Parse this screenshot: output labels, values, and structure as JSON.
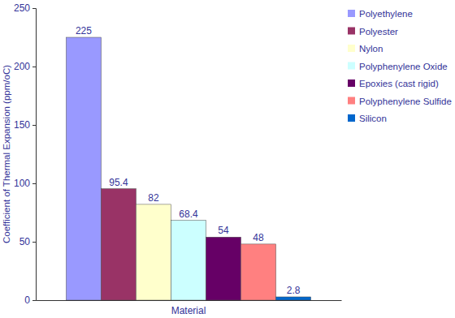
{
  "chart_data": {
    "type": "bar",
    "x_label": "Material",
    "y_label": "Coefficient of Thermal Expansion (ppm/oC)",
    "categories": [
      "Polyethylene",
      "Polyester",
      "Nylon",
      "Polyphenylene Oxide",
      "Epoxies (cast rigid)",
      "Polyphenylene Sulfide",
      "Silicon"
    ],
    "values": [
      225,
      95.4,
      82,
      68.4,
      54,
      48,
      2.8
    ],
    "colors": [
      "#9999ff",
      "#993366",
      "#ffffcc",
      "#ccffff",
      "#660066",
      "#ff8080",
      "#0066cc"
    ],
    "ylim": [
      0,
      250
    ],
    "yticks": [
      0,
      50,
      100,
      150,
      200,
      250
    ],
    "grid": false,
    "legend": "right",
    "data_labels": true,
    "tick_labels": "y"
  }
}
